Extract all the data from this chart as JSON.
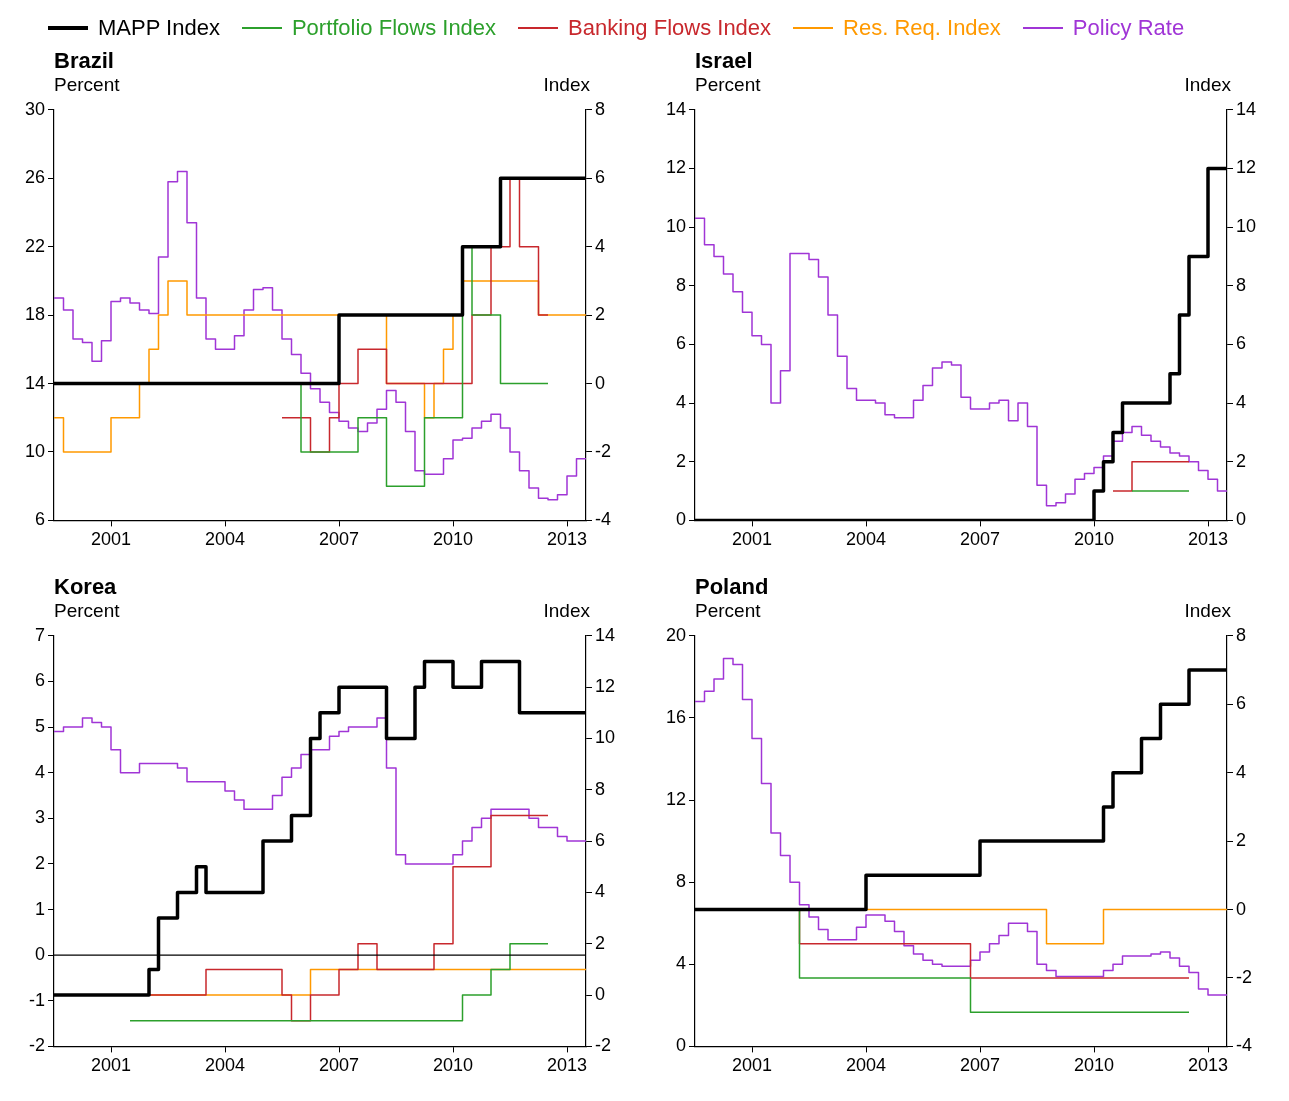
{
  "chart_data": [
    {
      "type": "step",
      "title": "Brazil",
      "ylabel": "Percent",
      "y2label": "Index",
      "legend": "top",
      "grid": false,
      "xlim": [
        1999.5,
        2013.5
      ],
      "xticks": [
        2001,
        2004,
        2007,
        2010,
        2013
      ],
      "ylim": [
        6,
        30
      ],
      "yticks": [
        6,
        10,
        14,
        18,
        22,
        26,
        30
      ],
      "y2lim": [
        -4,
        8
      ],
      "y2ticks": [
        -4,
        -2,
        0,
        2,
        4,
        6,
        8
      ],
      "x": [
        1999.5,
        1999.75,
        2000,
        2000.25,
        2000.5,
        2000.75,
        2001,
        2001.25,
        2001.5,
        2001.75,
        2002,
        2002.25,
        2002.5,
        2002.75,
        2003,
        2003.25,
        2003.5,
        2003.75,
        2004,
        2004.25,
        2004.5,
        2004.75,
        2005,
        2005.25,
        2005.5,
        2005.75,
        2006,
        2006.25,
        2006.5,
        2006.75,
        2007,
        2007.25,
        2007.5,
        2007.75,
        2008,
        2008.25,
        2008.5,
        2008.75,
        2009,
        2009.25,
        2009.5,
        2009.75,
        2010,
        2010.25,
        2010.5,
        2010.75,
        2011,
        2011.25,
        2011.5,
        2011.75,
        2012,
        2012.25,
        2012.5,
        2012.75,
        2013,
        2013.25,
        2013.5
      ],
      "series": [
        {
          "name": "MAPP Index",
          "color": "#000000",
          "axis": "y2",
          "x": [
            1999.5,
            2007,
            2010.25,
            2011.25,
            2013.5
          ],
          "values": [
            0,
            2,
            4,
            6,
            6
          ]
        },
        {
          "name": "Portfolio Flows Index",
          "color": "#2ca02c",
          "axis": "y2",
          "x": [
            2001.5,
            2006,
            2007.5,
            2008.25,
            2009.25,
            2010.25,
            2010.5,
            2011.25,
            2012.5
          ],
          "values": [
            0,
            -2,
            -1,
            -3,
            -1,
            4,
            2,
            0,
            0
          ]
        },
        {
          "name": "Banking Flows Index",
          "color": "#c8282d",
          "axis": "y2",
          "x": [
            2005.5,
            2006.25,
            2006.75,
            2007,
            2007.5,
            2008.25,
            2010.5,
            2011,
            2011.5,
            2011.75,
            2012.25,
            2012.5
          ],
          "values": [
            -1,
            -2,
            -1,
            0,
            1,
            0,
            2,
            4,
            6,
            4,
            2,
            2
          ]
        },
        {
          "name": "Res. Req. Index",
          "color": "#ff9900",
          "axis": "y2",
          "x": [
            1999.5,
            1999.75,
            2001,
            2001.75,
            2002,
            2002.25,
            2002.5,
            2003,
            2008.25,
            2009.25,
            2009.5,
            2009.75,
            2010,
            2010.25,
            2012.25,
            2013.5
          ],
          "values": [
            -1,
            -2,
            -1,
            0,
            1,
            2,
            3,
            2,
            0,
            -1,
            0,
            1,
            2,
            3,
            2,
            2
          ]
        },
        {
          "name": "Policy Rate",
          "color": "#a035d6",
          "values": [
            19.0,
            18.3,
            16.6,
            16.4,
            15.3,
            16.5,
            18.8,
            19.0,
            18.7,
            18.3,
            18.1,
            21.4,
            25.8,
            26.4,
            23.4,
            19.0,
            16.6,
            16.0,
            16.0,
            16.8,
            18.3,
            19.5,
            19.6,
            18.3,
            16.6,
            15.7,
            14.6,
            13.7,
            12.9,
            12.3,
            11.8,
            11.4,
            11.2,
            11.7,
            12.5,
            13.6,
            12.9,
            11.2,
            8.9,
            8.7,
            8.7,
            9.6,
            10.7,
            10.8,
            11.4,
            11.8,
            12.2,
            11.4,
            10.0,
            8.9,
            7.9,
            7.3,
            7.2,
            7.5,
            8.6,
            9.6,
            9.6
          ]
        }
      ]
    },
    {
      "type": "step",
      "title": "Israel",
      "ylabel": "Percent",
      "y2label": "Index",
      "grid": false,
      "xlim": [
        1999.5,
        2013.5
      ],
      "xticks": [
        2001,
        2004,
        2007,
        2010,
        2013
      ],
      "ylim": [
        0,
        14
      ],
      "yticks": [
        0,
        2,
        4,
        6,
        8,
        10,
        12,
        14
      ],
      "y2lim": [
        0,
        14
      ],
      "y2ticks": [
        0,
        2,
        4,
        6,
        8,
        10,
        12,
        14
      ],
      "x": [
        1999.5,
        1999.75,
        2000,
        2000.25,
        2000.5,
        2000.75,
        2001,
        2001.25,
        2001.5,
        2001.75,
        2002,
        2002.25,
        2002.5,
        2002.75,
        2003,
        2003.25,
        2003.5,
        2003.75,
        2004,
        2004.25,
        2004.5,
        2004.75,
        2005,
        2005.25,
        2005.5,
        2005.75,
        2006,
        2006.25,
        2006.5,
        2006.75,
        2007,
        2007.25,
        2007.5,
        2007.75,
        2008,
        2008.25,
        2008.5,
        2008.75,
        2009,
        2009.25,
        2009.5,
        2009.75,
        2010,
        2010.25,
        2010.5,
        2010.75,
        2011,
        2011.25,
        2011.5,
        2011.75,
        2012,
        2012.25,
        2012.5,
        2012.75,
        2013,
        2013.25,
        2013.5
      ],
      "series": [
        {
          "color": "#000000",
          "axis": "y2",
          "x": [
            1999.5,
            2010,
            2010.25,
            2010.5,
            2010.75,
            2012,
            2012.25,
            2012.5,
            2013,
            2013.5
          ],
          "values": [
            0,
            1,
            2,
            3,
            4,
            5,
            7,
            9,
            12,
            12
          ]
        },
        {
          "color": "#2ca02c",
          "axis": "y2",
          "x": [
            2011,
            2012.5
          ],
          "values": [
            1,
            1
          ]
        },
        {
          "color": "#c8282d",
          "axis": "y2",
          "x": [
            2010.5,
            2011,
            2012.5
          ],
          "values": [
            1,
            2,
            2
          ]
        },
        {
          "color": "#a035d6",
          "values": [
            10.3,
            9.4,
            9.0,
            8.4,
            7.8,
            7.1,
            6.3,
            6.0,
            4.0,
            5.1,
            9.1,
            9.1,
            8.9,
            8.3,
            7.0,
            5.6,
            4.5,
            4.1,
            4.1,
            4.0,
            3.6,
            3.5,
            3.5,
            4.1,
            4.6,
            5.2,
            5.4,
            5.3,
            4.2,
            3.8,
            3.8,
            4.0,
            4.1,
            3.4,
            4.0,
            3.2,
            1.2,
            0.5,
            0.6,
            0.9,
            1.4,
            1.6,
            1.8,
            2.2,
            2.7,
            3.0,
            3.2,
            2.9,
            2.7,
            2.5,
            2.3,
            2.2,
            2.0,
            1.7,
            1.4,
            1.0,
            1.0
          ]
        }
      ]
    },
    {
      "type": "step",
      "title": "Korea",
      "ylabel": "Percent",
      "y2label": "Index",
      "grid": false,
      "xlim": [
        1999.5,
        2013.5
      ],
      "xticks": [
        2001,
        2004,
        2007,
        2010,
        2013
      ],
      "ylim": [
        -2,
        7
      ],
      "yticks": [
        -2,
        -1,
        0,
        1,
        2,
        3,
        4,
        5,
        6,
        7
      ],
      "y2lim": [
        -2,
        14
      ],
      "y2ticks": [
        -2,
        0,
        2,
        4,
        6,
        8,
        10,
        12,
        14
      ],
      "ref_lines": [
        {
          "axis": "y",
          "value": 0,
          "color": "#000000"
        }
      ],
      "x": [
        1999.5,
        1999.75,
        2000,
        2000.25,
        2000.5,
        2000.75,
        2001,
        2001.25,
        2001.5,
        2001.75,
        2002,
        2002.25,
        2002.5,
        2002.75,
        2003,
        2003.25,
        2003.5,
        2003.75,
        2004,
        2004.25,
        2004.5,
        2004.75,
        2005,
        2005.25,
        2005.5,
        2005.75,
        2006,
        2006.25,
        2006.5,
        2006.75,
        2007,
        2007.25,
        2007.5,
        2007.75,
        2008,
        2008.25,
        2008.5,
        2008.75,
        2009,
        2009.25,
        2009.5,
        2009.75,
        2010,
        2010.25,
        2010.5,
        2010.75,
        2011,
        2011.25,
        2011.5,
        2011.75,
        2012,
        2012.25,
        2012.5,
        2012.75,
        2013,
        2013.25,
        2013.5
      ],
      "series": [
        {
          "color": "#000000",
          "axis": "y2",
          "x": [
            1999.5,
            2002,
            2002.25,
            2002.75,
            2003.25,
            2003.5,
            2005,
            2005.75,
            2006.25,
            2006.5,
            2007,
            2008.25,
            2009,
            2009.25,
            2010,
            2010.75,
            2011.75,
            2013.5
          ],
          "values": [
            0,
            1,
            3,
            4,
            5,
            4,
            6,
            7,
            10,
            11,
            12,
            10,
            12,
            13,
            12,
            13,
            11,
            11
          ]
        },
        {
          "color": "#2ca02c",
          "axis": "y2",
          "x": [
            2001.5,
            2010.25,
            2011,
            2011.5,
            2012.5
          ],
          "values": [
            -1,
            0,
            1,
            2,
            2
          ]
        },
        {
          "color": "#c8282d",
          "axis": "y2",
          "x": [
            1999.5,
            2003.5,
            2005.5,
            2005.75,
            2006.25,
            2007,
            2007.5,
            2008,
            2009.5,
            2010,
            2011,
            2012.5
          ],
          "values": [
            0,
            1,
            0,
            -1,
            0,
            1,
            2,
            1,
            2,
            5,
            7,
            7
          ]
        },
        {
          "color": "#ff9900",
          "axis": "y2",
          "x": [
            1999.5,
            2006.25,
            2013.5
          ],
          "values": [
            0,
            1,
            1
          ]
        },
        {
          "color": "#a035d6",
          "values": [
            4.9,
            5.0,
            5.0,
            5.2,
            5.1,
            5.0,
            4.5,
            4.0,
            4.0,
            4.2,
            4.2,
            4.2,
            4.2,
            4.1,
            3.8,
            3.8,
            3.8,
            3.8,
            3.6,
            3.4,
            3.2,
            3.2,
            3.2,
            3.5,
            3.9,
            4.1,
            4.4,
            4.5,
            4.5,
            4.8,
            4.9,
            5.0,
            5.0,
            5.0,
            5.2,
            4.1,
            2.2,
            2.0,
            2.0,
            2.0,
            2.0,
            2.0,
            2.2,
            2.5,
            2.8,
            3.0,
            3.2,
            3.2,
            3.2,
            3.2,
            3.0,
            2.8,
            2.8,
            2.6,
            2.5,
            2.5,
            2.5
          ]
        }
      ]
    },
    {
      "type": "step",
      "title": "Poland",
      "ylabel": "Percent",
      "y2label": "Index",
      "grid": false,
      "xlim": [
        1999.5,
        2013.5
      ],
      "xticks": [
        2001,
        2004,
        2007,
        2010,
        2013
      ],
      "ylim": [
        0,
        20
      ],
      "yticks": [
        0,
        4,
        8,
        12,
        16,
        20
      ],
      "y2lim": [
        -4,
        8
      ],
      "y2ticks": [
        -4,
        -2,
        0,
        2,
        4,
        6,
        8
      ],
      "x": [
        1999.5,
        1999.75,
        2000,
        2000.25,
        2000.5,
        2000.75,
        2001,
        2001.25,
        2001.5,
        2001.75,
        2002,
        2002.25,
        2002.5,
        2002.75,
        2003,
        2003.25,
        2003.5,
        2003.75,
        2004,
        2004.25,
        2004.5,
        2004.75,
        2005,
        2005.25,
        2005.5,
        2005.75,
        2006,
        2006.25,
        2006.5,
        2006.75,
        2007,
        2007.25,
        2007.5,
        2007.75,
        2008,
        2008.25,
        2008.5,
        2008.75,
        2009,
        2009.25,
        2009.5,
        2009.75,
        2010,
        2010.25,
        2010.5,
        2010.75,
        2011,
        2011.25,
        2011.5,
        2011.75,
        2012,
        2012.25,
        2012.5,
        2012.75,
        2013,
        2013.25,
        2013.5
      ],
      "series": [
        {
          "color": "#000000",
          "axis": "y2",
          "x": [
            1999.5,
            2004,
            2007,
            2010.25,
            2010.5,
            2011.25,
            2011.75,
            2012.5,
            2013.5
          ],
          "values": [
            0,
            1,
            2,
            3,
            4,
            5,
            6,
            7,
            7
          ]
        },
        {
          "color": "#2ca02c",
          "axis": "y2",
          "x": [
            1999.5,
            2002.25,
            2006.75,
            2012.5
          ],
          "values": [
            0,
            -2,
            -3,
            -3
          ]
        },
        {
          "color": "#c8282d",
          "axis": "y2",
          "x": [
            1999.5,
            2002.25,
            2006.75,
            2012.5
          ],
          "values": [
            0,
            -1,
            -2,
            -2
          ]
        },
        {
          "color": "#ff9900",
          "axis": "y2",
          "x": [
            1999.5,
            2008.75,
            2010.25,
            2013.5
          ],
          "values": [
            0,
            -1,
            0,
            0
          ]
        },
        {
          "color": "#a035d6",
          "values": [
            16.8,
            17.3,
            17.9,
            18.9,
            18.6,
            16.9,
            15.0,
            12.8,
            10.4,
            9.3,
            8.0,
            6.9,
            6.3,
            5.7,
            5.2,
            5.2,
            5.2,
            5.8,
            6.4,
            6.4,
            6.1,
            5.6,
            4.9,
            4.5,
            4.2,
            4.0,
            3.9,
            3.9,
            3.9,
            4.2,
            4.6,
            5.0,
            5.4,
            6.0,
            6.0,
            5.6,
            4.0,
            3.7,
            3.4,
            3.4,
            3.4,
            3.4,
            3.4,
            3.7,
            4.0,
            4.4,
            4.4,
            4.4,
            4.5,
            4.6,
            4.3,
            3.9,
            3.6,
            2.8,
            2.5,
            2.5,
            2.5
          ]
        }
      ]
    }
  ]
}
